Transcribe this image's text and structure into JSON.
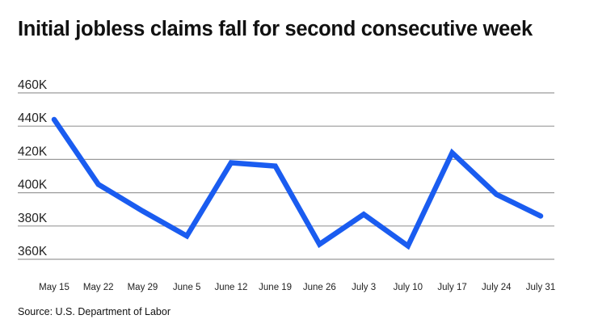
{
  "chart_data": {
    "type": "line",
    "title": "Initial jobless claims fall for second consecutive week",
    "source": "Source: U.S. Department of Labor",
    "xlabel": "",
    "ylabel": "",
    "categories": [
      "May 15",
      "May 22",
      "May 29",
      "June 5",
      "June 12",
      "June 19",
      "June 26",
      "July 3",
      "July 10",
      "July 17",
      "July 24",
      "July 31"
    ],
    "series": [
      {
        "name": "Initial jobless claims",
        "values": [
          444000,
          405000,
          389000,
          374000,
          418000,
          416000,
          369000,
          387000,
          368000,
          424000,
          399000,
          386000
        ],
        "color": "#1a5cf0"
      }
    ],
    "yticks": [
      360000,
      380000,
      400000,
      420000,
      440000,
      460000
    ],
    "ytick_labels": [
      "360K",
      "380K",
      "400K",
      "420K",
      "440K",
      "460K"
    ],
    "ylim": [
      360000,
      460000
    ],
    "grid": true,
    "legend": "none"
  }
}
